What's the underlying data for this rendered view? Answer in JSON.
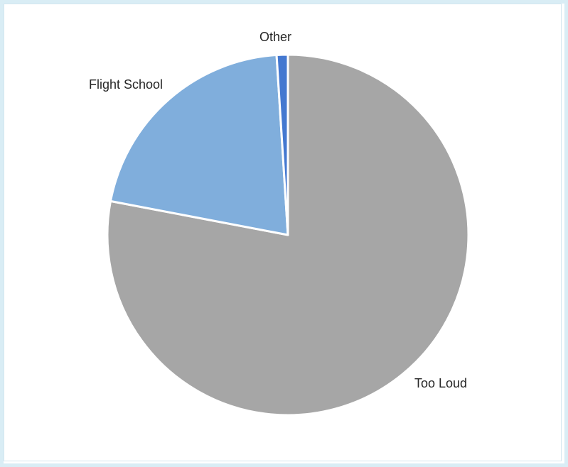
{
  "chart_data": {
    "type": "pie",
    "categories": [
      "Too Loud",
      "Flight School",
      "Other"
    ],
    "values": [
      78,
      21,
      1
    ],
    "colors": [
      "#a6a6a6",
      "#80aedc",
      "#4478d0"
    ],
    "title": "",
    "start_angle_deg": 0,
    "direction": "clockwise",
    "legend": "none"
  }
}
